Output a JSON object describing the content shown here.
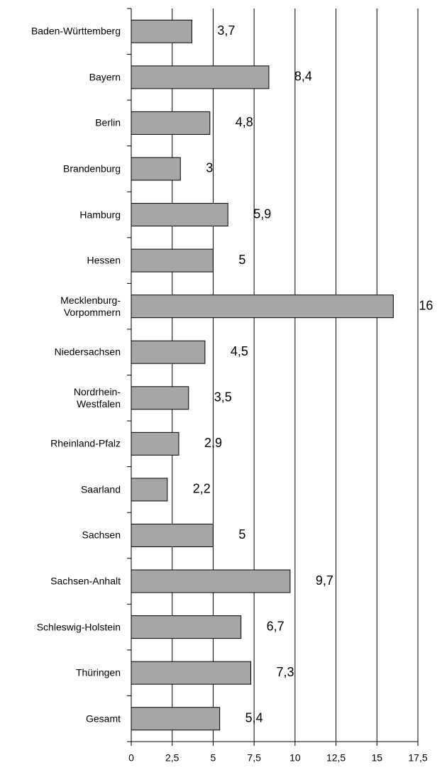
{
  "chart_data": {
    "type": "barh",
    "categories": [
      "Baden-Württemberg",
      "Bayern",
      "Berlin",
      "Brandenburg",
      "Hamburg",
      "Hessen",
      "Mecklenburg-\nVorpommern",
      "Niedersachsen",
      "Nordrhein-\nWestfalen",
      "Rheinland-Pfalz",
      "Saarland",
      "Sachsen",
      "Sachsen-Anhalt",
      "Schleswig-Holstein",
      "Thüringen",
      "Gesamt"
    ],
    "values": [
      3.7,
      8.4,
      4.8,
      3,
      5.9,
      5,
      16,
      4.5,
      3.5,
      2.9,
      2.2,
      5,
      9.7,
      6.7,
      7.3,
      5.4
    ],
    "value_labels": [
      "3,7",
      "8,4",
      "4,8",
      "3",
      "5,9",
      "5",
      "16",
      "4,5",
      "3,5",
      "2,9",
      "2,2",
      "5",
      "9,7",
      "6,7",
      "7,3",
      "5,4"
    ],
    "color": "#a6a6a6",
    "xlim": [
      0,
      17.5
    ],
    "xticks": [
      0,
      {
        "value": 2.5,
        "label": "2,5"
      },
      5,
      {
        "value": 7.5,
        "label": "7,5"
      },
      10,
      {
        "value": 12.5,
        "label": "12,5"
      },
      15,
      {
        "value": 17.5,
        "label": "17,5"
      }
    ],
    "grid": true
  }
}
